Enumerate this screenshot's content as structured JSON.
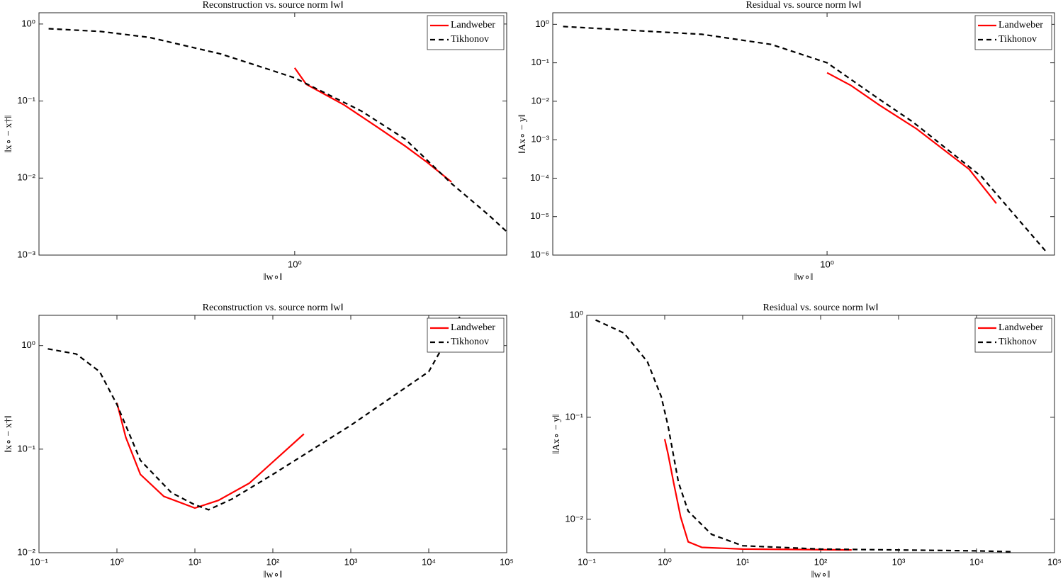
{
  "chart_data": [
    {
      "type": "line",
      "title": "Reconstruction vs. source norm ‖w‖",
      "x_label": "‖w∘‖",
      "y_label": "‖x∘ − x†‖",
      "xscale": "log",
      "yscale": "log",
      "xlim": [
        0.12,
        5.8
      ],
      "ylim": [
        0.001,
        1.4
      ],
      "xticks": [
        {
          "value": 1,
          "label": "10⁰"
        }
      ],
      "yticks": [
        {
          "value": 0.001,
          "label": "10⁻³"
        },
        {
          "value": 0.01,
          "label": "10⁻²"
        },
        {
          "value": 0.1,
          "label": "10⁻¹"
        },
        {
          "value": 1,
          "label": "10⁰"
        }
      ],
      "legend": "upper right",
      "series": [
        {
          "name": "Landweber",
          "color": "#ff0000",
          "dashed": false,
          "x": [
            1.0,
            1.1,
            1.5,
            2.0,
            2.5,
            3.0,
            3.67
          ],
          "values": [
            0.27,
            0.165,
            0.09,
            0.045,
            0.026,
            0.016,
            0.0089
          ]
        },
        {
          "name": "Tikhonov",
          "color": "#000000",
          "dashed": true,
          "x": [
            0.13,
            0.2,
            0.3,
            0.54,
            0.8,
            1.0,
            1.74,
            2.5,
            3.67,
            5.0,
            6.1
          ],
          "values": [
            0.87,
            0.8,
            0.67,
            0.41,
            0.26,
            0.2,
            0.074,
            0.032,
            0.0085,
            0.0033,
            0.0017
          ]
        }
      ]
    },
    {
      "type": "line",
      "title": "Residual vs. source norm ‖w‖",
      "x_label": "‖w∘‖",
      "y_label": "‖Ax∘ − y‖",
      "xscale": "log",
      "yscale": "log",
      "xlim": [
        0.12,
        5.8
      ],
      "ylim": [
        1e-06,
        2
      ],
      "xticks": [
        {
          "value": 1,
          "label": "10⁰"
        }
      ],
      "yticks": [
        {
          "value": 1e-06,
          "label": "10⁻⁶"
        },
        {
          "value": 1e-05,
          "label": "10⁻⁵"
        },
        {
          "value": 0.0001,
          "label": "10⁻⁴"
        },
        {
          "value": 0.001,
          "label": "10⁻³"
        },
        {
          "value": 0.01,
          "label": "10⁻²"
        },
        {
          "value": 0.1,
          "label": "10⁻¹"
        },
        {
          "value": 1,
          "label": "10⁰"
        }
      ],
      "legend": "upper right",
      "series": [
        {
          "name": "Landweber",
          "color": "#ff0000",
          "dashed": false,
          "x": [
            1.0,
            1.2,
            1.5,
            2.0,
            3.0,
            3.7
          ],
          "values": [
            0.055,
            0.026,
            0.0079,
            0.0019,
            0.00017,
            2.2e-05
          ]
        },
        {
          "name": "Tikhonov",
          "color": "#000000",
          "dashed": true,
          "x": [
            0.13,
            0.38,
            0.65,
            1.0,
            1.48,
            1.94,
            3.3,
            5.4
          ],
          "values": [
            0.88,
            0.55,
            0.3,
            0.1,
            0.012,
            0.0029,
            0.00011,
            1.3e-06
          ]
        }
      ]
    },
    {
      "type": "line",
      "title": "Reconstruction vs. source norm ‖w‖",
      "x_label": "‖w∘‖",
      "y_label": "‖x∘ − x†‖",
      "xscale": "log",
      "yscale": "log",
      "xlim": [
        0.1,
        100000
      ],
      "ylim": [
        0.01,
        1.96
      ],
      "xticks": [
        {
          "value": 0.1,
          "label": "10⁻¹"
        },
        {
          "value": 1,
          "label": "10⁰"
        },
        {
          "value": 10,
          "label": "10¹"
        },
        {
          "value": 100,
          "label": "10²"
        },
        {
          "value": 1000,
          "label": "10³"
        },
        {
          "value": 10000,
          "label": "10⁴"
        },
        {
          "value": 100000,
          "label": "10⁵"
        }
      ],
      "yticks": [
        {
          "value": 0.01,
          "label": "10⁻²"
        },
        {
          "value": 0.1,
          "label": "10⁻¹"
        },
        {
          "value": 1,
          "label": "10⁰"
        }
      ],
      "legend": "upper right",
      "series": [
        {
          "name": "Landweber",
          "color": "#ff0000",
          "dashed": false,
          "x": [
            1.0,
            1.3,
            2.0,
            4.0,
            10,
            20,
            50,
            250
          ],
          "values": [
            0.28,
            0.13,
            0.057,
            0.035,
            0.027,
            0.032,
            0.047,
            0.14
          ]
        },
        {
          "name": "Tikhonov",
          "color": "#000000",
          "dashed": true,
          "x": [
            0.13,
            0.3,
            0.6,
            1.0,
            2.0,
            5.0,
            10,
            15,
            30,
            100,
            1000,
            10000,
            25000
          ],
          "values": [
            0.93,
            0.83,
            0.56,
            0.27,
            0.078,
            0.038,
            0.029,
            0.026,
            0.033,
            0.057,
            0.17,
            0.56,
            1.9
          ]
        }
      ]
    },
    {
      "type": "line",
      "title": "Residual vs. source norm ‖w‖",
      "x_label": "‖w∘‖",
      "y_label": "‖Ax∘ − y‖",
      "xscale": "log",
      "yscale": "log",
      "xlim": [
        0.1,
        100000
      ],
      "ylim": [
        0.0047,
        1
      ],
      "xticks": [
        {
          "value": 0.1,
          "label": "10⁻¹"
        },
        {
          "value": 1,
          "label": "10⁰"
        },
        {
          "value": 10,
          "label": "10¹"
        },
        {
          "value": 100,
          "label": "10²"
        },
        {
          "value": 1000,
          "label": "10³"
        },
        {
          "value": 10000,
          "label": "10⁴"
        },
        {
          "value": 100000,
          "label": "10⁵"
        }
      ],
      "yticks": [
        {
          "value": 0.01,
          "label": "10⁻²"
        },
        {
          "value": 0.1,
          "label": "10⁻¹"
        },
        {
          "value": 1,
          "label": "10⁰"
        }
      ],
      "legend": "upper right",
      "series": [
        {
          "name": "Landweber",
          "color": "#ff0000",
          "dashed": false,
          "x": [
            1.0,
            1.1,
            1.3,
            1.6,
            2.0,
            3.0,
            10,
            250
          ],
          "values": [
            0.061,
            0.044,
            0.023,
            0.0105,
            0.006,
            0.0053,
            0.0051,
            0.005
          ]
        },
        {
          "name": "Tikhonov",
          "color": "#000000",
          "dashed": true,
          "x": [
            0.13,
            0.3,
            0.6,
            0.9,
            1.1,
            1.5,
            2.0,
            4.0,
            10,
            100,
            10000,
            30000
          ],
          "values": [
            0.9,
            0.67,
            0.35,
            0.16,
            0.083,
            0.023,
            0.012,
            0.0071,
            0.0055,
            0.0051,
            0.0049,
            0.0048
          ]
        }
      ]
    }
  ]
}
